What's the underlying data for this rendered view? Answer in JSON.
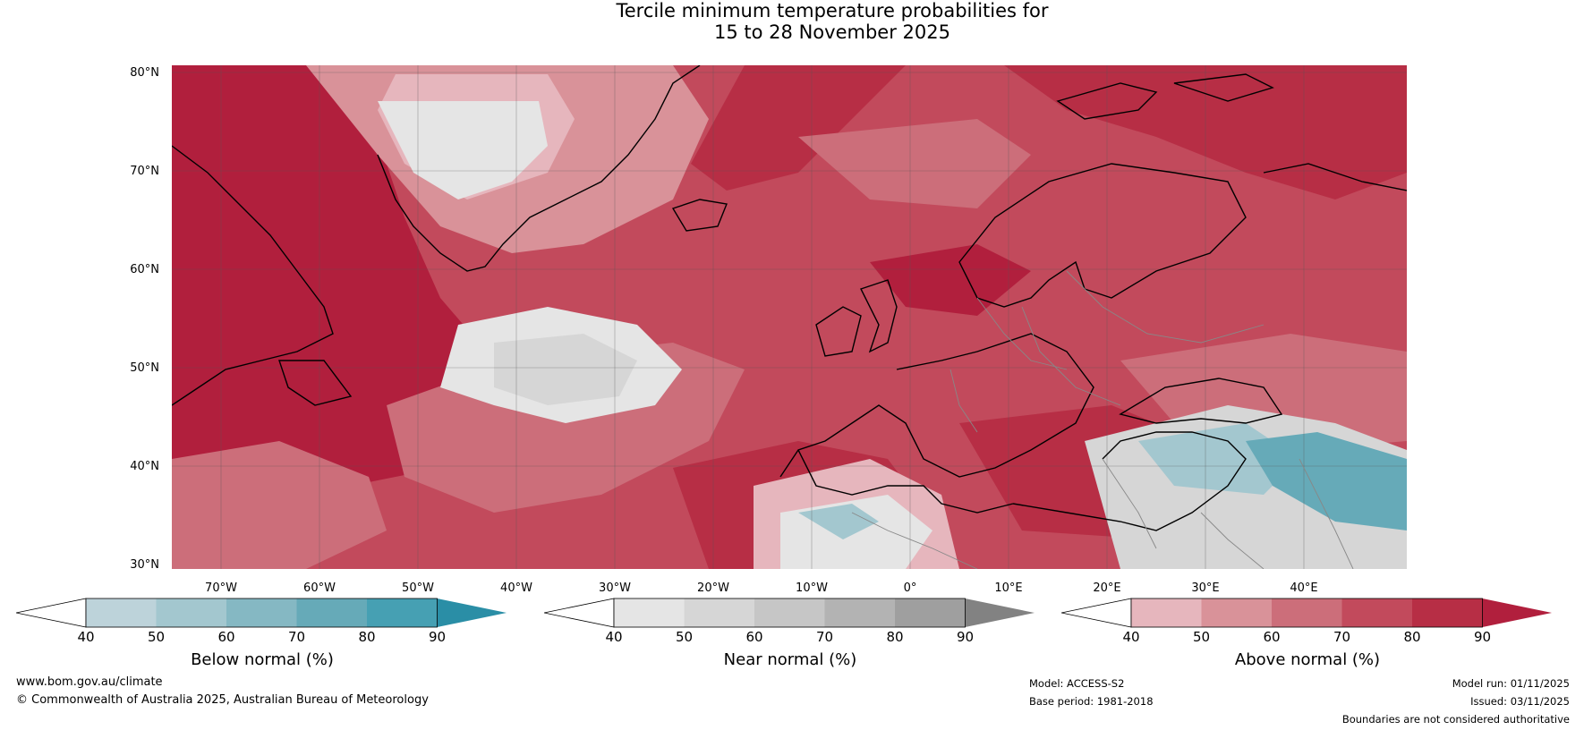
{
  "title": {
    "line1": "Tercile minimum temperature probabilities for",
    "line2": "15 to 28 November 2025"
  },
  "map": {
    "lat_labels": [
      "80°N",
      "70°N",
      "60°N",
      "50°N",
      "40°N",
      "30°N"
    ],
    "lon_labels": [
      "70°W",
      "60°W",
      "50°W",
      "40°W",
      "30°W",
      "20°W",
      "10°W",
      "0°",
      "10°E",
      "20°E",
      "30°E",
      "40°E"
    ]
  },
  "colorbars": [
    {
      "label": "Below normal (%)",
      "ticks": [
        "40",
        "50",
        "60",
        "70",
        "80",
        "90"
      ],
      "colors": [
        "#ffffff",
        "#bdd3da",
        "#a3c7cf",
        "#85b8c3",
        "#66aab8",
        "#46a0b3",
        "#2a8ea6"
      ]
    },
    {
      "label": "Near normal (%)",
      "ticks": [
        "40",
        "50",
        "60",
        "70",
        "80",
        "90"
      ],
      "colors": [
        "#ffffff",
        "#e5e5e5",
        "#d6d6d6",
        "#c6c6c6",
        "#b3b3b3",
        "#9f9f9f",
        "#828282"
      ]
    },
    {
      "label": "Above normal (%)",
      "ticks": [
        "40",
        "50",
        "60",
        "70",
        "80",
        "90"
      ],
      "colors": [
        "#ffffff",
        "#e6b6bd",
        "#d99299",
        "#cc6e7a",
        "#c24a5c",
        "#b72e45",
        "#b11f3d"
      ]
    }
  ],
  "footer": {
    "website": "www.bom.gov.au/climate",
    "copyright": "© Commonwealth of Australia 2025, Australian Bureau of Meteorology",
    "model": "Model: ACCESS-S2",
    "base_period": "Base period: 1981-2018",
    "model_run": "Model run: 01/11/2025",
    "issued": "Issued: 03/11/2025",
    "disclaimer": "Boundaries are not considered authoritative"
  }
}
